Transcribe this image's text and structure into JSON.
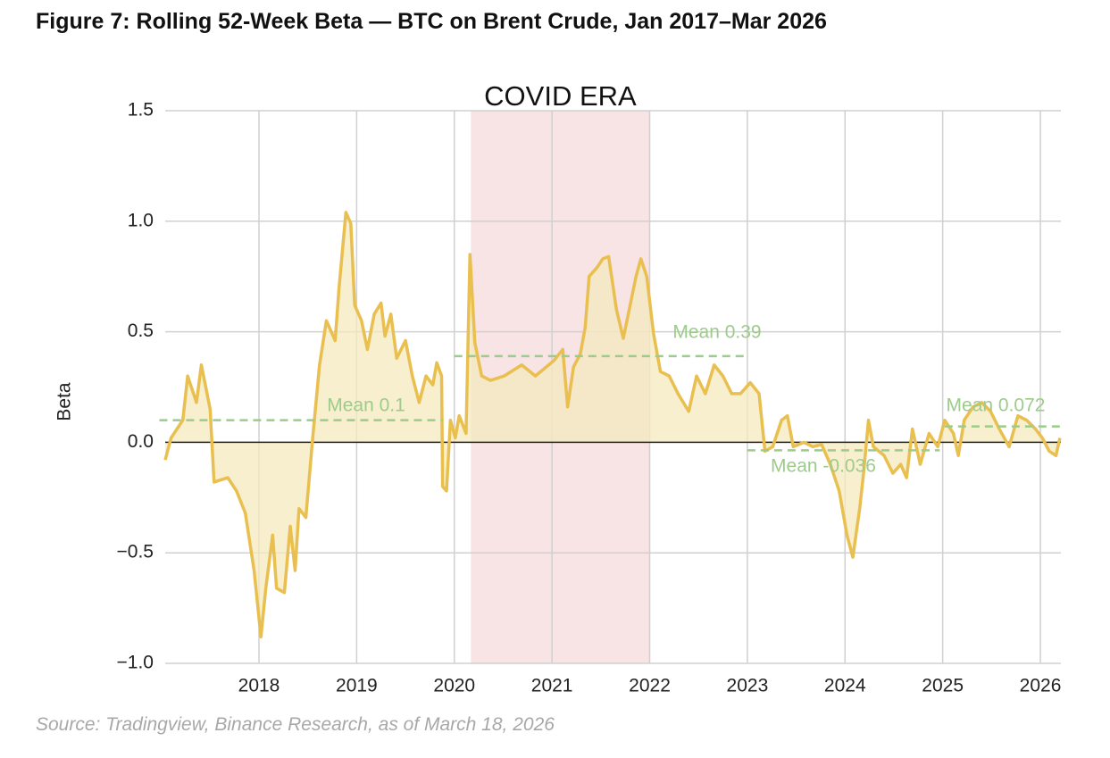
{
  "chart_data": {
    "type": "area",
    "title": "Figure 7: Rolling 52-Week Beta — BTC on Brent Crude, Jan 2017–Mar 2026",
    "source": "Source: Tradingview, Binance Research, as of March 18, 2026",
    "y_label": "Beta",
    "xlim": [
      2017.04,
      2026.21
    ],
    "xticks": [
      2018,
      2019,
      2020,
      2021,
      2022,
      2023,
      2024,
      2025,
      2026
    ],
    "ylim": [
      -1.0,
      1.5
    ],
    "yticks": [
      {
        "value": -1.0,
        "label": "−1.0"
      },
      {
        "value": -0.5,
        "label": "−0.5"
      },
      {
        "value": 0,
        "label": "0.0"
      },
      0.5,
      {
        "value": 1.0,
        "label": "1.0"
      },
      1.5
    ],
    "grid": true,
    "shaded_region": {
      "label": "COVID ERA",
      "x": [
        2020.17,
        2022.0
      ],
      "color": "#f8e3e5"
    },
    "series": [
      {
        "name": "Beta",
        "color": "#e9bf4f",
        "fill": "#f4e9bd",
        "x": [
          2017.04,
          2017.1,
          2017.22,
          2017.27,
          2017.36,
          2017.41,
          2017.5,
          2017.54,
          2017.68,
          2017.77,
          2017.86,
          2017.95,
          2018.02,
          2018.07,
          2018.14,
          2018.18,
          2018.26,
          2018.32,
          2018.37,
          2018.41,
          2018.48,
          2018.55,
          2018.62,
          2018.69,
          2018.78,
          2018.82,
          2018.89,
          2018.94,
          2018.98,
          2019.05,
          2019.11,
          2019.18,
          2019.25,
          2019.29,
          2019.35,
          2019.41,
          2019.5,
          2019.57,
          2019.64,
          2019.71,
          2019.78,
          2019.82,
          2019.87,
          2019.88,
          2019.92,
          2019.96,
          2020.01,
          2020.05,
          2020.12,
          2020.16,
          2020.21,
          2020.28,
          2020.37,
          2020.51,
          2020.69,
          2020.83,
          2021.02,
          2021.11,
          2021.16,
          2021.22,
          2021.29,
          2021.34,
          2021.38,
          2021.46,
          2021.52,
          2021.58,
          2021.66,
          2021.73,
          2021.8,
          2021.86,
          2021.91,
          2021.97,
          2022.04,
          2022.11,
          2022.2,
          2022.29,
          2022.4,
          2022.48,
          2022.57,
          2022.66,
          2022.75,
          2022.84,
          2022.93,
          2023.03,
          2023.12,
          2023.18,
          2023.26,
          2023.35,
          2023.41,
          2023.47,
          2023.58,
          2023.67,
          2023.76,
          2023.85,
          2023.94,
          2024.02,
          2024.08,
          2024.15,
          2024.19,
          2024.24,
          2024.29,
          2024.4,
          2024.49,
          2024.57,
          2024.63,
          2024.69,
          2024.77,
          2024.86,
          2024.95,
          2025.02,
          2025.11,
          2025.16,
          2025.22,
          2025.31,
          2025.4,
          2025.49,
          2025.58,
          2025.68,
          2025.77,
          2025.86,
          2025.95,
          2026.02,
          2026.09,
          2026.16,
          2026.2
        ],
        "values": [
          -0.08,
          0.02,
          0.1,
          0.3,
          0.18,
          0.35,
          0.15,
          -0.18,
          -0.16,
          -0.22,
          -0.32,
          -0.58,
          -0.88,
          -0.66,
          -0.42,
          -0.66,
          -0.68,
          -0.38,
          -0.58,
          -0.3,
          -0.34,
          0.02,
          0.35,
          0.55,
          0.46,
          0.7,
          1.04,
          0.99,
          0.62,
          0.55,
          0.42,
          0.58,
          0.63,
          0.48,
          0.58,
          0.38,
          0.46,
          0.3,
          0.18,
          0.3,
          0.26,
          0.36,
          0.3,
          -0.2,
          -0.22,
          0.1,
          0.02,
          0.12,
          0.04,
          0.85,
          0.45,
          0.3,
          0.28,
          0.3,
          0.35,
          0.3,
          0.37,
          0.42,
          0.16,
          0.34,
          0.4,
          0.52,
          0.75,
          0.79,
          0.83,
          0.84,
          0.6,
          0.47,
          0.62,
          0.75,
          0.83,
          0.75,
          0.49,
          0.32,
          0.3,
          0.22,
          0.14,
          0.3,
          0.22,
          0.35,
          0.3,
          0.22,
          0.22,
          0.27,
          0.22,
          -0.04,
          -0.02,
          0.1,
          0.12,
          -0.02,
          0,
          -0.02,
          -0.01,
          -0.1,
          -0.22,
          -0.42,
          -0.52,
          -0.3,
          -0.14,
          0.1,
          -0.02,
          -0.06,
          -0.14,
          -0.1,
          -0.16,
          0.06,
          -0.1,
          0.04,
          -0.02,
          0.1,
          0.04,
          -0.06,
          0.1,
          0.16,
          0.18,
          0.14,
          0.06,
          -0.02,
          0.12,
          0.1,
          0.06,
          0.02,
          -0.04,
          -0.06,
          0.02
        ]
      }
    ],
    "means": {
      "color": "#9dcb8b",
      "items": [
        {
          "label": "Mean 0.1",
          "value": 0.1,
          "x": [
            2016.98,
            2019.88
          ]
        },
        {
          "label": "Mean 0.39",
          "value": 0.39,
          "x": [
            2020.0,
            2023.0
          ]
        },
        {
          "label": "Mean -0.036",
          "value": -0.036,
          "x": [
            2023.0,
            2024.97
          ]
        },
        {
          "label": "Mean 0.072",
          "value": 0.072,
          "x": [
            2025.02,
            2026.21
          ]
        }
      ]
    }
  }
}
